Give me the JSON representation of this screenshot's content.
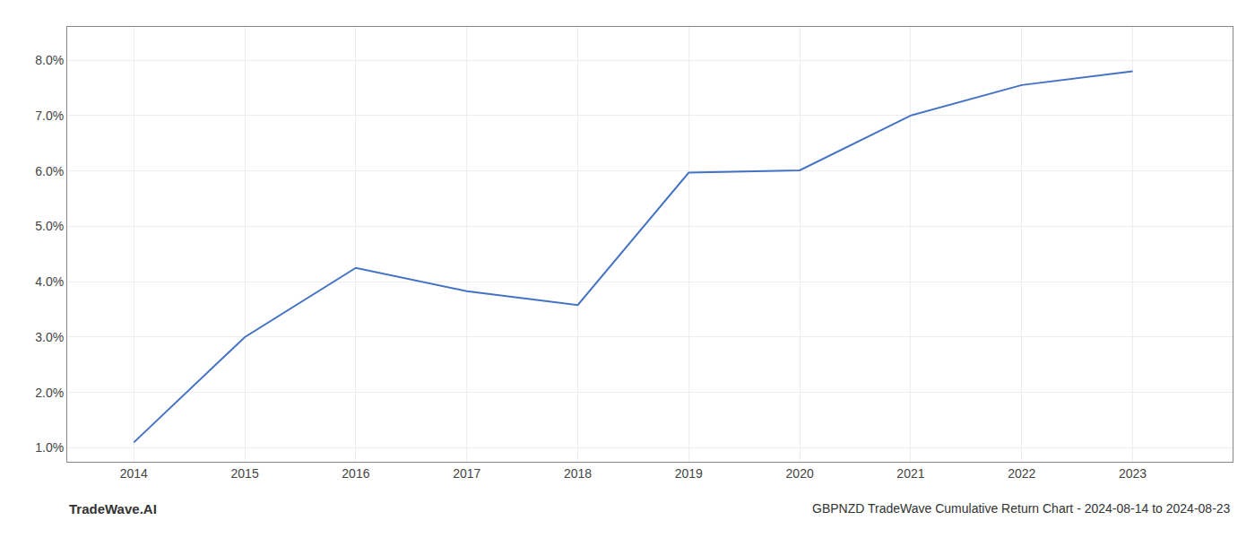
{
  "chart_data": {
    "type": "line",
    "x": [
      2014,
      2015,
      2016,
      2017,
      2018,
      2019,
      2020,
      2021,
      2022,
      2023
    ],
    "values": [
      1.1,
      3.0,
      4.25,
      3.83,
      3.58,
      5.97,
      6.01,
      7.0,
      7.55,
      7.8
    ],
    "color": "#4472c4",
    "xlim": [
      2013.4,
      2023.9
    ],
    "xticks": [
      2014,
      2015,
      2016,
      2017,
      2018,
      2019,
      2020,
      2021,
      2022,
      2023
    ],
    "ylim": [
      0.75,
      8.6
    ],
    "yticks": [
      {
        "value": 1.0,
        "label": "1.0%"
      },
      {
        "value": 2.0,
        "label": "2.0%"
      },
      {
        "value": 3.0,
        "label": "3.0%"
      },
      {
        "value": 4.0,
        "label": "4.0%"
      },
      {
        "value": 5.0,
        "label": "5.0%"
      },
      {
        "value": 6.0,
        "label": "6.0%"
      },
      {
        "value": 7.0,
        "label": "7.0%"
      },
      {
        "value": 8.0,
        "label": "8.0%"
      }
    ],
    "grid": true,
    "annotations": [
      "TradeWave.AI",
      "GBPNZD TradeWave Cumulative Return Chart - 2024-08-14 to 2024-08-23"
    ]
  }
}
